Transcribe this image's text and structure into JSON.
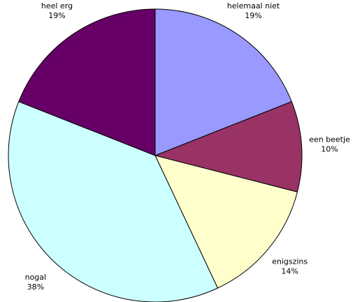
{
  "chart_data": {
    "type": "pie",
    "categories": [
      "helemaal niet",
      "een beetje",
      "enigszins",
      "nogal",
      "heel erg"
    ],
    "values": [
      19,
      10,
      14,
      38,
      19
    ],
    "value_labels": [
      "19%",
      "10%",
      "14%",
      "38%",
      "19%"
    ],
    "colors": [
      "#9999ff",
      "#993366",
      "#ffffcc",
      "#ccffff",
      "#660066"
    ]
  }
}
